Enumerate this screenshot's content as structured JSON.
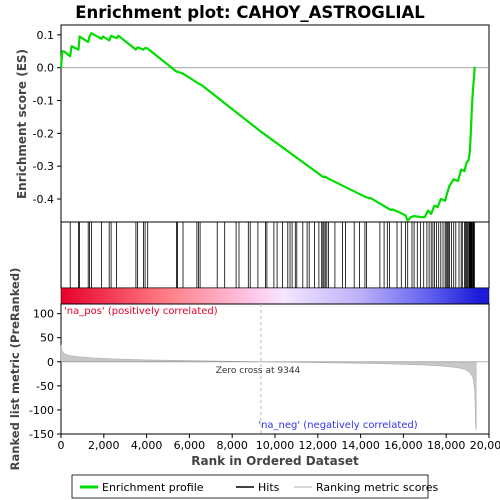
{
  "chart_data": {
    "type": "line",
    "title": "Enrichment plot: CAHOY_ASTROGLIAL",
    "xlabel": "Rank in Ordered Dataset",
    "xlim": [
      0,
      20000
    ],
    "xticks": [
      0,
      2000,
      4000,
      6000,
      8000,
      10000,
      12000,
      14000,
      16000,
      18000,
      20000
    ],
    "xtick_labels": [
      "0",
      "2,000",
      "4,000",
      "6,000",
      "8,000",
      "10,000",
      "12,000",
      "14,000",
      "16,000",
      "18,000",
      "20,000"
    ],
    "n_genes": 19400,
    "es_panel": {
      "ylabel": "Enrichment score (ES)",
      "ylim": [
        -0.47,
        0.13
      ],
      "yticks": [
        -0.4,
        -0.3,
        -0.2,
        -0.1,
        0.0,
        0.1
      ],
      "ytick_labels": [
        "-0.4",
        "-0.3",
        "-0.2",
        "-0.1",
        "0.0",
        "0.1"
      ],
      "series": [
        {
          "name": "Enrichment profile",
          "color": "#00dd00",
          "x": [
            0,
            60,
            130,
            430,
            490,
            820,
            870,
            1270,
            1330,
            1420,
            1890,
            1960,
            2250,
            2340,
            2600,
            2680,
            3500,
            3580,
            3850,
            3930,
            4050,
            5400,
            5700,
            6350,
            6400,
            6550,
            9344,
            12250,
            12350,
            12500,
            14200,
            14300,
            14500,
            15400,
            15500,
            15800,
            16100,
            16200,
            16350,
            16500,
            16850,
            17000,
            17150,
            17300,
            17450,
            17600,
            17750,
            17950,
            18050,
            18150,
            18350,
            18550,
            18700,
            18850,
            18950,
            19050,
            19100,
            19150,
            19200,
            19250,
            19300,
            19330
          ],
          "y": [
            0.0,
            0.05,
            0.05,
            0.035,
            0.065,
            0.055,
            0.095,
            0.078,
            0.095,
            0.105,
            0.088,
            0.095,
            0.083,
            0.097,
            0.09,
            0.097,
            0.055,
            0.062,
            0.055,
            0.06,
            0.058,
            -0.012,
            -0.018,
            -0.045,
            -0.048,
            -0.052,
            -0.195,
            -0.333,
            -0.332,
            -0.338,
            -0.393,
            -0.395,
            -0.398,
            -0.433,
            -0.432,
            -0.44,
            -0.45,
            -0.465,
            -0.455,
            -0.452,
            -0.455,
            -0.455,
            -0.435,
            -0.445,
            -0.42,
            -0.425,
            -0.4,
            -0.405,
            -0.38,
            -0.36,
            -0.34,
            -0.345,
            -0.31,
            -0.315,
            -0.29,
            -0.28,
            -0.26,
            -0.2,
            -0.12,
            -0.07,
            -0.03,
            0.003
          ]
        }
      ]
    },
    "hits_panel": {
      "legend_name": "Hits",
      "hit_ranks": [
        10,
        430,
        820,
        870,
        1270,
        1330,
        1420,
        1890,
        2250,
        2340,
        2600,
        3500,
        3580,
        3850,
        3930,
        4050,
        5400,
        5450,
        5700,
        6350,
        6420,
        6500,
        7300,
        7650,
        8180,
        8320,
        8750,
        8840,
        9200,
        9550,
        9620,
        9950,
        10100,
        10350,
        10600,
        10700,
        10800,
        10950,
        11020,
        11300,
        11500,
        11600,
        11850,
        12050,
        12180,
        12240,
        12290,
        12350,
        12420,
        12500,
        12800,
        13150,
        13300,
        13700,
        13950,
        14200,
        14280,
        14900,
        15100,
        15250,
        15350,
        15700,
        15900,
        16100,
        16200,
        16400,
        16500,
        16650,
        16800,
        16950,
        17100,
        17200,
        17300,
        17380,
        17450,
        17550,
        17650,
        17750,
        17850,
        17950,
        18000,
        18050,
        18100,
        18150,
        18250,
        18350,
        18450,
        18600,
        18700,
        18750,
        18850,
        18900,
        18950,
        19000,
        19050,
        19080,
        19100,
        19120,
        19150,
        19170,
        19200,
        19230,
        19260,
        19290,
        19320
      ]
    },
    "metric_panel": {
      "ylabel": "Ranked list metric (PreRanked)",
      "ylim": [
        -150,
        120
      ],
      "yticks": [
        -150,
        -100,
        -50,
        0,
        50,
        100
      ],
      "ytick_labels": [
        "-150",
        "-100",
        "-50",
        "0",
        "50",
        "100"
      ],
      "series_name": "Ranking metric scores",
      "x": [
        0,
        40,
        100,
        200,
        400,
        800,
        1500,
        2500,
        4000,
        6000,
        8000,
        9344,
        11000,
        13000,
        15000,
        16000,
        17000,
        17800,
        18500,
        18900,
        19100,
        19250,
        19330,
        19380,
        19400
      ],
      "y": [
        35,
        24,
        19,
        16,
        13,
        10.5,
        8,
        6,
        4,
        2.5,
        1,
        0,
        -1,
        -2.5,
        -4,
        -5.5,
        -7,
        -9,
        -12,
        -16,
        -22,
        -32,
        -60,
        -140,
        -140
      ],
      "zero_cross_label": "Zero cross at 9344",
      "zero_cross_rank": 9344,
      "pos_label": "'na_pos' (positively correlated)",
      "neg_label": "'na_neg' (negatively correlated)",
      "pos_color": "#e8002a",
      "neg_color": "#3333ee"
    },
    "legend": {
      "placement": "bottom",
      "entries": [
        "Enrichment profile",
        "Hits",
        "Ranking metric scores"
      ]
    }
  }
}
